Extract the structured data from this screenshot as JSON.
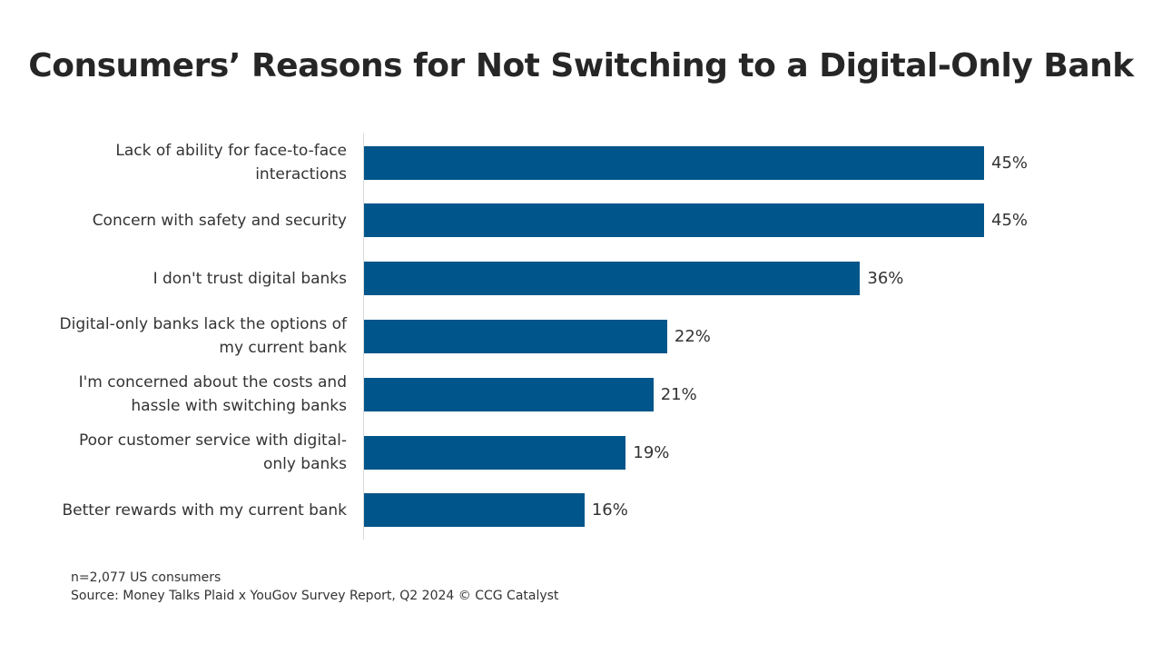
{
  "chart_data": {
    "type": "bar",
    "orientation": "horizontal",
    "title": "Consumers’ Reasons for Not Switching to a Digital-Only Bank",
    "categories": [
      "Lack of ability for face-to-face interactions",
      "Concern with safety and security",
      "I don't trust digital banks",
      "Digital-only banks lack the options of my current bank",
      "I'm concerned about the costs and hassle with switching banks",
      "Poor customer service with digital-only banks",
      "Better rewards with my current bank"
    ],
    "values": [
      45,
      45,
      36,
      22,
      21,
      19,
      16
    ],
    "value_labels": [
      "45%",
      "45%",
      "36%",
      "22%",
      "21%",
      "19%",
      "16%"
    ],
    "color": "#00558a",
    "notes": [
      "n=2,077 US consumers",
      "Source: Money Talks Plaid x YouGov Survey Report, Q2 2024 © CCG Catalyst"
    ]
  }
}
